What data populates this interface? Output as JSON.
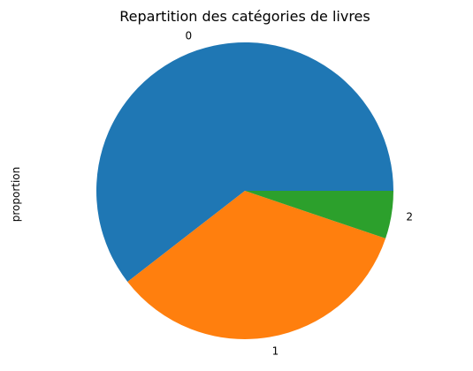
{
  "chart_data": {
    "type": "pie",
    "title": "Repartition des catégories de livres",
    "ylabel": "proportion",
    "categories": [
      "0",
      "1",
      "2"
    ],
    "values": [
      0.605,
      0.343,
      0.052
    ],
    "colors": [
      "#1f77b4",
      "#ff7f0e",
      "#2ca02c"
    ],
    "start_angle_deg": 0,
    "direction": "counterclockwise",
    "legend": "none"
  }
}
